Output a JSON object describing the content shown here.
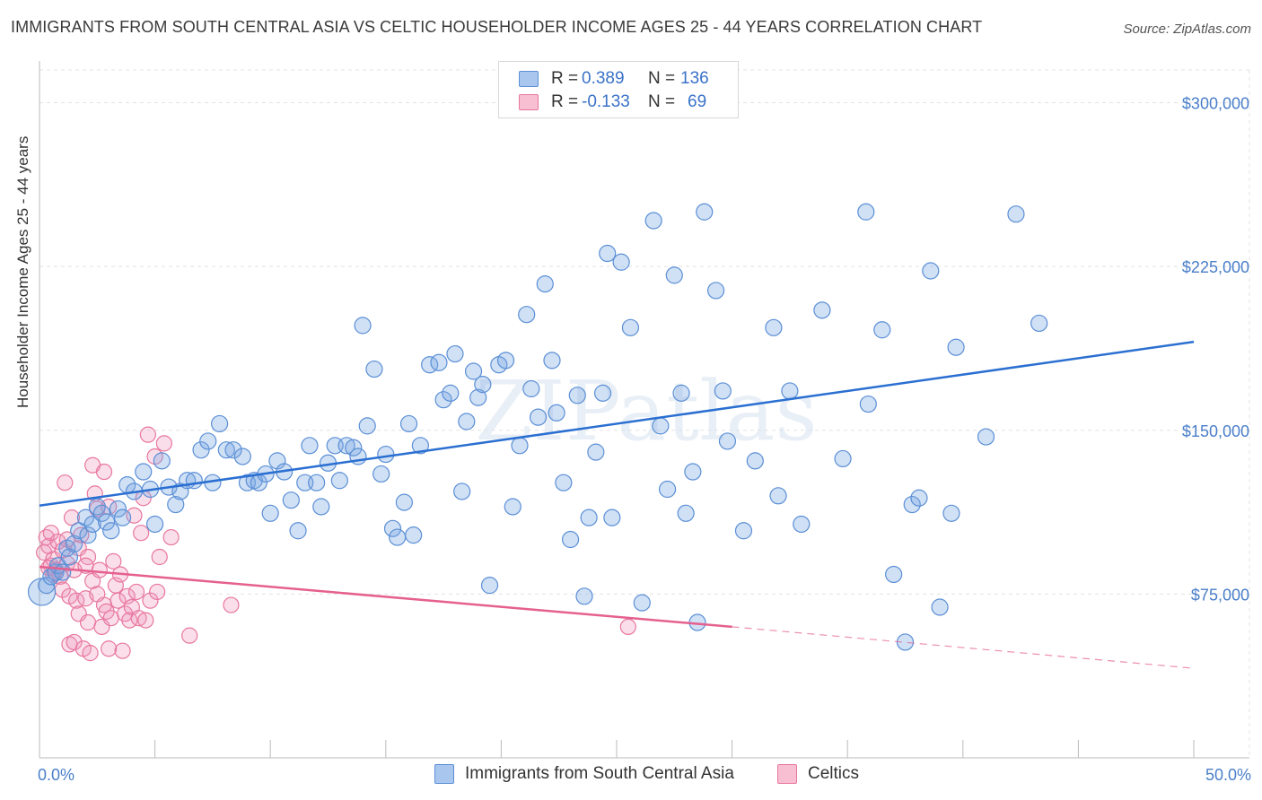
{
  "title": "IMMIGRANTS FROM SOUTH CENTRAL ASIA VS CELTIC HOUSEHOLDER INCOME AGES 25 - 44 YEARS CORRELATION CHART",
  "source": "Source: ZipAtlas.com",
  "watermark": "ZIPatlas",
  "colors": {
    "blue": "#5b8fd6",
    "blue_fill": "rgba(120,165,225,0.35)",
    "blue_line": "#2a6fd1",
    "pink": "#e8779e",
    "pink_fill": "rgba(240,150,185,0.30)",
    "pink_line": "#e5608e",
    "axis_text": "#4a7fc9",
    "grid": "#e3e3e3"
  },
  "legend": {
    "rows": [
      {
        "r_label": "R = ",
        "r_value": "0.389",
        "n_label": "N = ",
        "n_value": "136",
        "color": "#a9c6ee"
      },
      {
        "r_label": "R = ",
        "r_value": "-0.133",
        "n_label": "N = ",
        "n_value": "69",
        "color": "#f7bfd1"
      }
    ]
  },
  "bottom_legend": [
    {
      "label": "Immigrants from South Central Asia",
      "color": "#a9c6ee"
    },
    {
      "label": "Celtics",
      "color": "#f7bfd1"
    }
  ],
  "chart_data": {
    "type": "scatter",
    "title": "IMMIGRANTS FROM SOUTH CENTRAL ASIA VS CELTIC HOUSEHOLDER INCOME AGES 25 - 44 YEARS CORRELATION CHART",
    "xlabel": "",
    "ylabel": "Householder Income Ages 25 - 44 years",
    "xlim": [
      0,
      50
    ],
    "ylim": [
      0,
      315000
    ],
    "x_tick_labels": [
      "0.0%",
      "50.0%"
    ],
    "y_ticks": [
      75000,
      150000,
      225000,
      300000
    ],
    "y_tick_labels": [
      "$75,000",
      "$150,000",
      "$225,000",
      "$300,000"
    ],
    "grid": true,
    "legend_position": "top-center",
    "series": [
      {
        "name": "Immigrants from South Central Asia",
        "r": 0.389,
        "n": 136,
        "trend": {
          "x0": 0,
          "y0": 115500,
          "x1": 50,
          "y1": 190500
        },
        "points": [
          [
            0.1,
            76000
          ],
          [
            0.3,
            79000
          ],
          [
            0.5,
            83000
          ],
          [
            0.7,
            85000
          ],
          [
            0.8,
            88000
          ],
          [
            1.0,
            85000
          ],
          [
            1.2,
            96000
          ],
          [
            1.3,
            92000
          ],
          [
            1.5,
            98000
          ],
          [
            1.7,
            104000
          ],
          [
            2.0,
            110000
          ],
          [
            2.1,
            102000
          ],
          [
            2.3,
            107000
          ],
          [
            2.5,
            115000
          ],
          [
            2.7,
            112000
          ],
          [
            2.9,
            108000
          ],
          [
            3.1,
            104000
          ],
          [
            3.4,
            114000
          ],
          [
            3.6,
            110000
          ],
          [
            3.8,
            125000
          ],
          [
            4.1,
            122000
          ],
          [
            4.5,
            131000
          ],
          [
            4.8,
            123000
          ],
          [
            5.0,
            107000
          ],
          [
            5.3,
            136000
          ],
          [
            5.6,
            124000
          ],
          [
            5.9,
            116000
          ],
          [
            6.1,
            122000
          ],
          [
            6.4,
            127000
          ],
          [
            6.7,
            127000
          ],
          [
            7.0,
            141000
          ],
          [
            7.3,
            145000
          ],
          [
            7.5,
            126000
          ],
          [
            7.8,
            153000
          ],
          [
            8.1,
            141000
          ],
          [
            8.4,
            141000
          ],
          [
            8.8,
            138000
          ],
          [
            9.0,
            126000
          ],
          [
            9.3,
            127000
          ],
          [
            9.5,
            126000
          ],
          [
            9.8,
            130000
          ],
          [
            10.0,
            112000
          ],
          [
            10.3,
            136000
          ],
          [
            10.6,
            131000
          ],
          [
            10.9,
            118000
          ],
          [
            11.2,
            104000
          ],
          [
            11.5,
            126000
          ],
          [
            11.7,
            143000
          ],
          [
            12.0,
            126000
          ],
          [
            12.2,
            115000
          ],
          [
            12.5,
            135000
          ],
          [
            12.8,
            143000
          ],
          [
            13.0,
            127000
          ],
          [
            13.3,
            143000
          ],
          [
            13.6,
            142000
          ],
          [
            13.8,
            138000
          ],
          [
            14.0,
            198000
          ],
          [
            14.2,
            152000
          ],
          [
            14.5,
            178000
          ],
          [
            14.8,
            130000
          ],
          [
            15.0,
            139000
          ],
          [
            15.3,
            105000
          ],
          [
            15.5,
            101000
          ],
          [
            15.8,
            117000
          ],
          [
            16.0,
            153000
          ],
          [
            16.2,
            102000
          ],
          [
            16.5,
            143000
          ],
          [
            16.9,
            180000
          ],
          [
            17.3,
            181000
          ],
          [
            17.5,
            164000
          ],
          [
            17.8,
            167000
          ],
          [
            18.0,
            185000
          ],
          [
            18.3,
            122000
          ],
          [
            18.5,
            154000
          ],
          [
            18.8,
            177000
          ],
          [
            19.0,
            165000
          ],
          [
            19.2,
            171000
          ],
          [
            19.5,
            79000
          ],
          [
            19.9,
            180000
          ],
          [
            20.2,
            182000
          ],
          [
            20.5,
            115000
          ],
          [
            20.8,
            143000
          ],
          [
            21.1,
            203000
          ],
          [
            21.3,
            169000
          ],
          [
            21.6,
            156000
          ],
          [
            21.9,
            217000
          ],
          [
            22.2,
            182000
          ],
          [
            22.4,
            158000
          ],
          [
            22.7,
            126000
          ],
          [
            23.0,
            100000
          ],
          [
            23.3,
            166000
          ],
          [
            23.6,
            74000
          ],
          [
            23.8,
            110000
          ],
          [
            24.1,
            140000
          ],
          [
            24.4,
            167000
          ],
          [
            24.6,
            231000
          ],
          [
            24.8,
            110000
          ],
          [
            25.2,
            227000
          ],
          [
            25.6,
            197000
          ],
          [
            26.1,
            71000
          ],
          [
            26.6,
            246000
          ],
          [
            26.9,
            152000
          ],
          [
            27.2,
            123000
          ],
          [
            27.5,
            221000
          ],
          [
            27.8,
            167000
          ],
          [
            28.0,
            112000
          ],
          [
            28.3,
            131000
          ],
          [
            28.5,
            62000
          ],
          [
            28.8,
            250000
          ],
          [
            29.3,
            214000
          ],
          [
            29.6,
            168000
          ],
          [
            29.8,
            145000
          ],
          [
            30.5,
            104000
          ],
          [
            31.0,
            136000
          ],
          [
            31.8,
            197000
          ],
          [
            32.0,
            120000
          ],
          [
            32.5,
            168000
          ],
          [
            33.0,
            107000
          ],
          [
            33.9,
            205000
          ],
          [
            34.8,
            137000
          ],
          [
            35.8,
            250000
          ],
          [
            35.9,
            162000
          ],
          [
            36.5,
            196000
          ],
          [
            37.0,
            84000
          ],
          [
            37.5,
            53000
          ],
          [
            37.8,
            116000
          ],
          [
            38.1,
            119000
          ],
          [
            38.6,
            223000
          ],
          [
            39.0,
            69000
          ],
          [
            39.5,
            112000
          ],
          [
            39.7,
            188000
          ],
          [
            41.0,
            147000
          ],
          [
            42.3,
            249000
          ],
          [
            43.3,
            199000
          ]
        ]
      },
      {
        "name": "Celtics",
        "r": -0.133,
        "n": 69,
        "trend": {
          "x0": 0,
          "y0": 87500,
          "x1": 30,
          "y1": 60000,
          "dashed_to_x": 50,
          "dashed_to_y": 41000
        },
        "points": [
          [
            0.2,
            94000
          ],
          [
            0.3,
            101000
          ],
          [
            0.4,
            97000
          ],
          [
            0.5,
            88000
          ],
          [
            0.5,
            103000
          ],
          [
            0.6,
            91000
          ],
          [
            0.7,
            86000
          ],
          [
            0.8,
            99000
          ],
          [
            0.9,
            83000
          ],
          [
            1.0,
            95000
          ],
          [
            1.0,
            77000
          ],
          [
            1.1,
            126000
          ],
          [
            1.2,
            89000
          ],
          [
            1.3,
            74000
          ],
          [
            1.3,
            52000
          ],
          [
            1.4,
            110000
          ],
          [
            1.5,
            86000
          ],
          [
            1.5,
            53000
          ],
          [
            1.6,
            72000
          ],
          [
            1.7,
            66000
          ],
          [
            1.7,
            96000
          ],
          [
            1.8,
            102000
          ],
          [
            1.9,
            50000
          ],
          [
            2.0,
            73000
          ],
          [
            2.1,
            92000
          ],
          [
            2.1,
            62000
          ],
          [
            2.2,
            48000
          ],
          [
            2.3,
            81000
          ],
          [
            2.3,
            134000
          ],
          [
            2.4,
            121000
          ],
          [
            2.5,
            75000
          ],
          [
            2.5,
            114000
          ],
          [
            2.6,
            86000
          ],
          [
            2.7,
            60000
          ],
          [
            2.8,
            70000
          ],
          [
            2.8,
            131000
          ],
          [
            2.9,
            67000
          ],
          [
            3.0,
            50000
          ],
          [
            3.1,
            64000
          ],
          [
            3.2,
            90000
          ],
          [
            3.3,
            79000
          ],
          [
            3.4,
            72000
          ],
          [
            3.5,
            84000
          ],
          [
            3.6,
            49000
          ],
          [
            3.7,
            66000
          ],
          [
            3.8,
            74000
          ],
          [
            3.9,
            63000
          ],
          [
            4.0,
            69000
          ],
          [
            4.1,
            111000
          ],
          [
            4.2,
            76000
          ],
          [
            4.3,
            64000
          ],
          [
            4.4,
            103000
          ],
          [
            4.5,
            119000
          ],
          [
            4.6,
            63000
          ],
          [
            4.7,
            148000
          ],
          [
            4.8,
            72000
          ],
          [
            5.0,
            138000
          ],
          [
            5.1,
            76000
          ],
          [
            5.2,
            92000
          ],
          [
            5.4,
            144000
          ],
          [
            5.7,
            101000
          ],
          [
            6.5,
            56000
          ],
          [
            8.3,
            70000
          ],
          [
            25.5,
            60000
          ],
          [
            0.4,
            87000
          ],
          [
            0.6,
            84000
          ],
          [
            1.2,
            100000
          ],
          [
            2.0,
            88000
          ],
          [
            3.0,
            115000
          ]
        ]
      }
    ]
  }
}
